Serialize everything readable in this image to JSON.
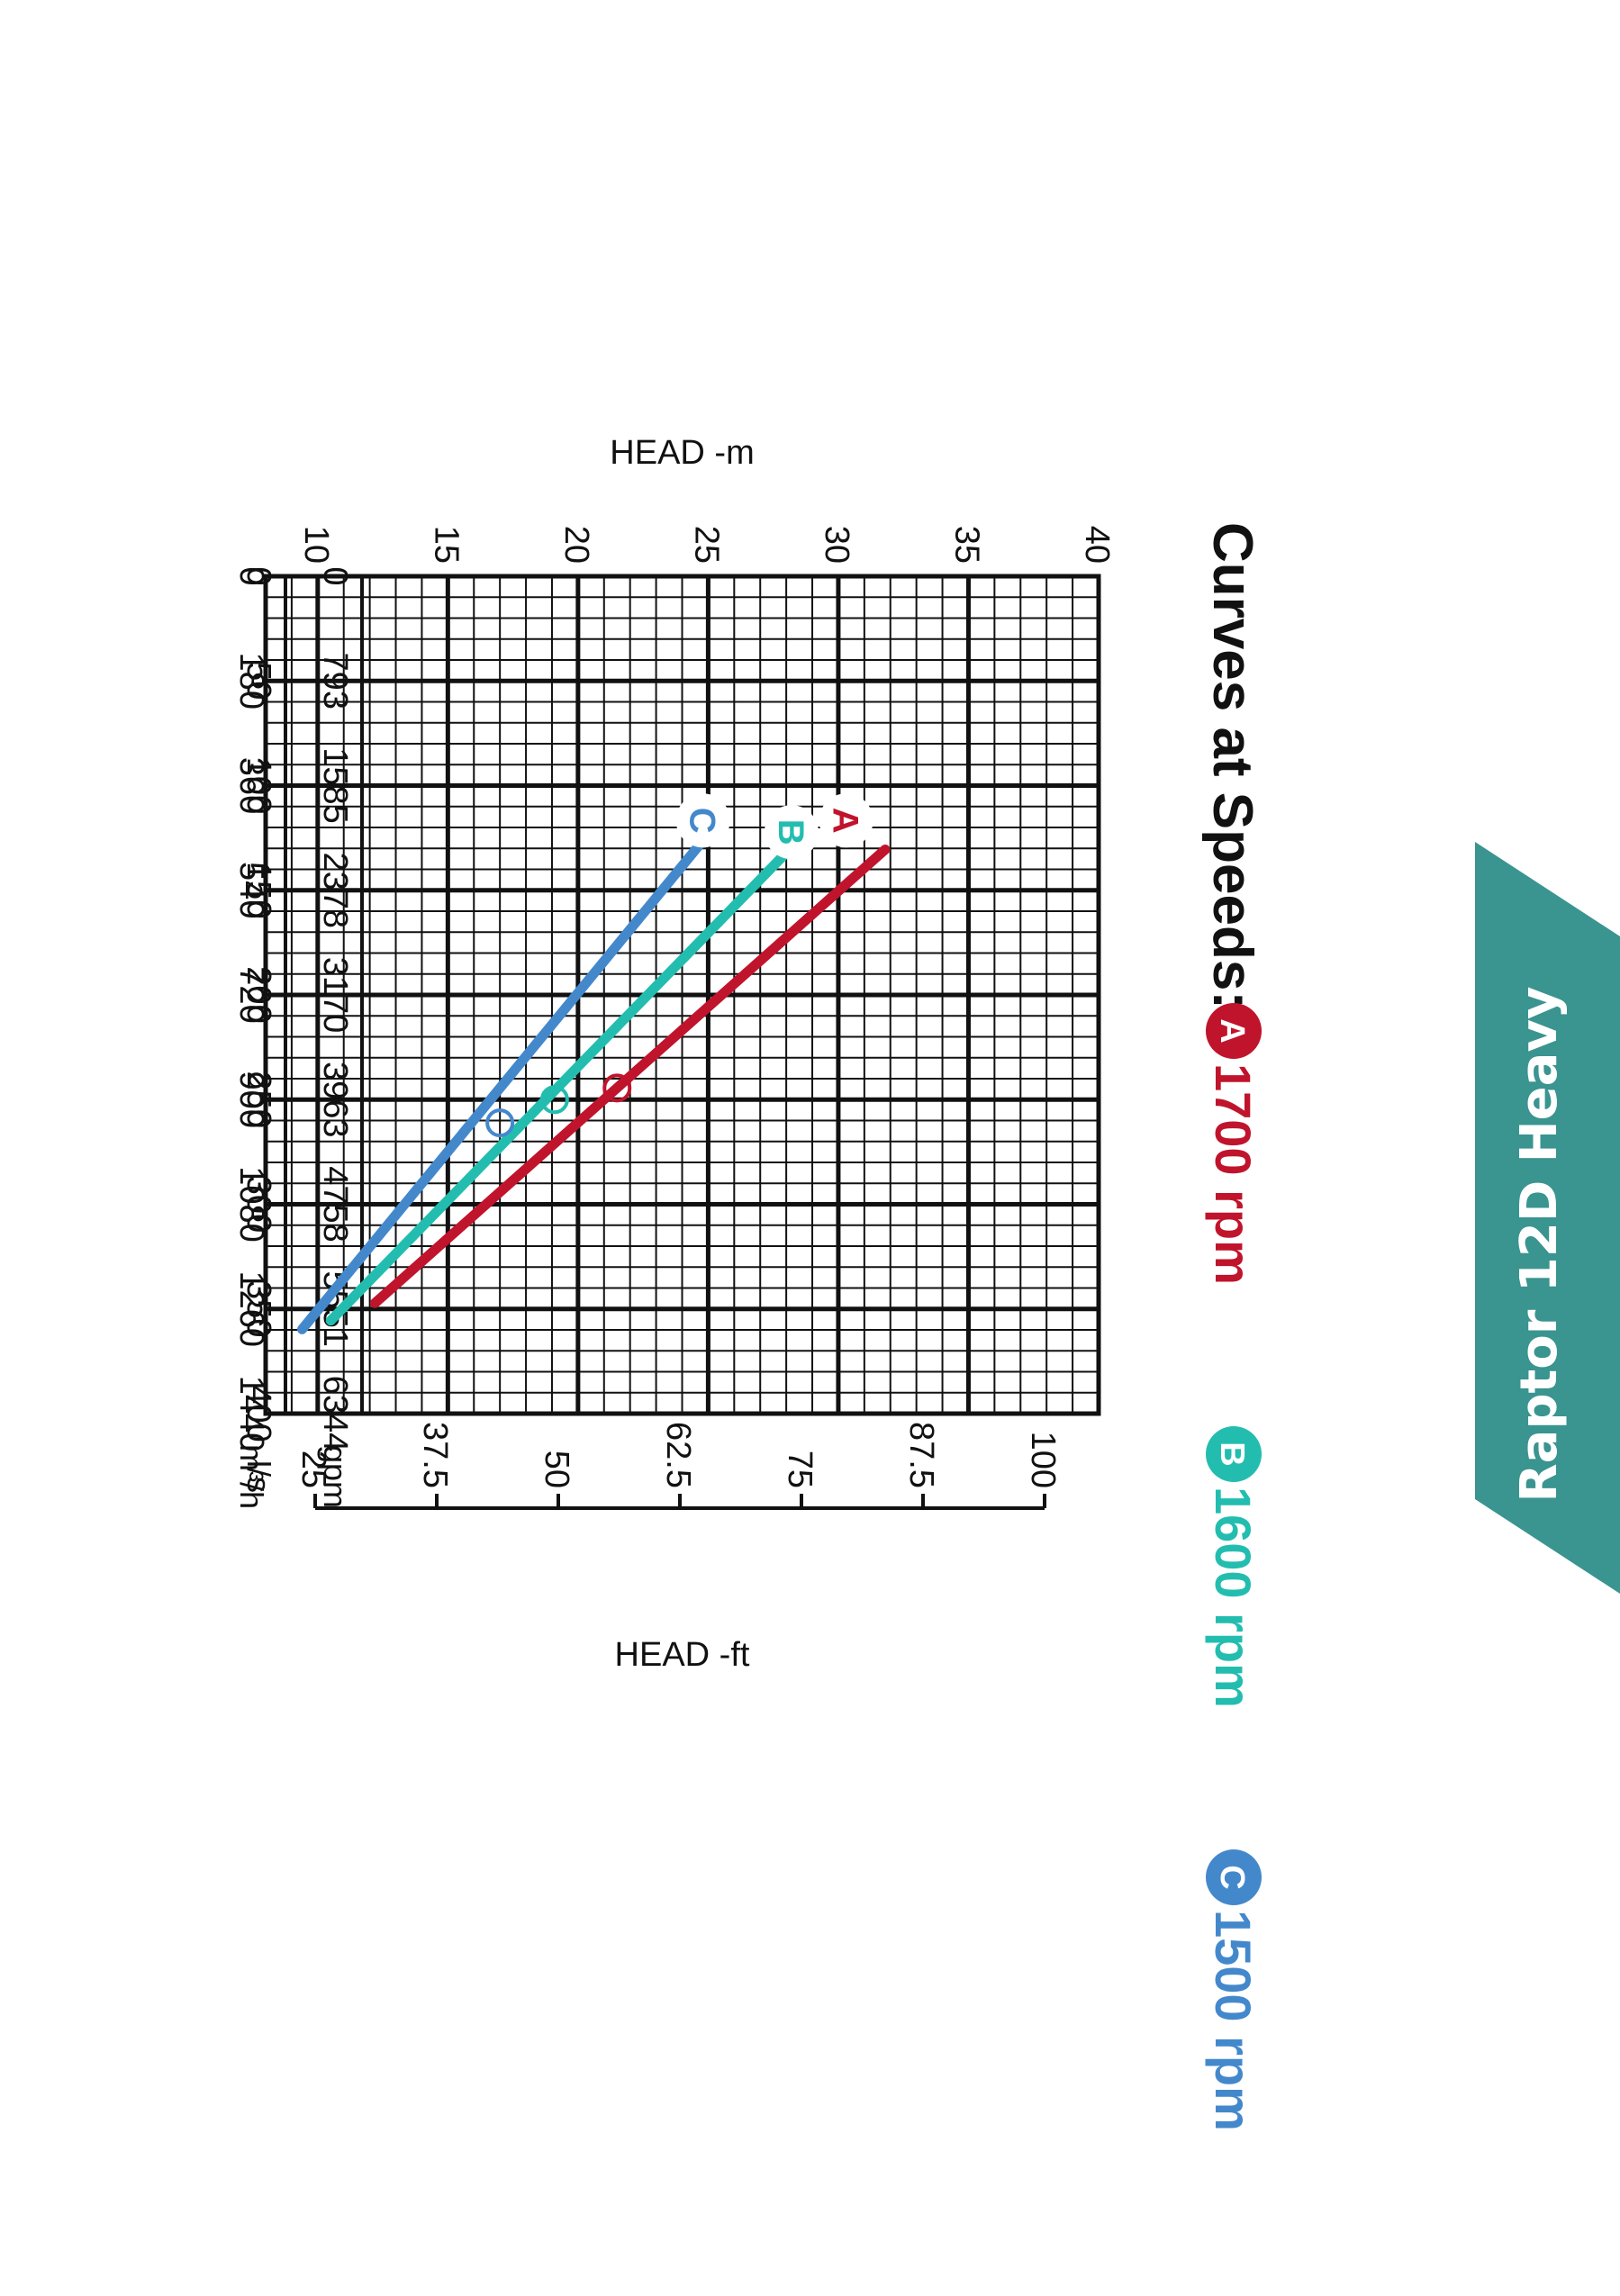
{
  "side_tab": {
    "label": "Raptor 12D Heavy",
    "color": "#3a9490"
  },
  "chart_data": {
    "type": "line",
    "title": "Curves at Speeds:",
    "orientation": "rotated 90 degrees clockwise",
    "x_axes": [
      {
        "unit": "m³/h",
        "range": [
          0,
          1440
        ],
        "ticks": [
          "0",
          "180",
          "360",
          "540",
          "720",
          "900",
          "1080",
          "1260",
          "1440"
        ]
      },
      {
        "unit": "gpm",
        "range": [
          0,
          6344
        ],
        "ticks": [
          "0",
          "793",
          "1585",
          "2378",
          "3170",
          "3963",
          "4758",
          "5551",
          "6344"
        ]
      },
      {
        "unit": "l/s",
        "range": [
          0,
          400
        ],
        "ticks": [
          "0",
          "50",
          "100",
          "150",
          "200",
          "250",
          "300",
          "350",
          "400"
        ]
      }
    ],
    "y_axes": [
      {
        "label": "HEAD -m",
        "range": [
          8,
          40
        ],
        "ticks": [
          "40",
          "35",
          "30",
          "25",
          "20",
          "15",
          "10"
        ]
      },
      {
        "label": "HEAD -ft",
        "range": [
          25,
          100
        ],
        "ticks": [
          "100",
          "87.5",
          "75",
          "62.5",
          "50",
          "37.5",
          "25"
        ]
      }
    ],
    "grid": true,
    "series": [
      {
        "name": "1700 rpm",
        "badge": "A",
        "color": "#c0142c",
        "x": [
          470,
          1250
        ],
        "y": [
          31.8,
          12.2
        ],
        "marker": {
          "x": 880,
          "y": 21.5
        }
      },
      {
        "name": "1600 rpm",
        "badge": "B",
        "color": "#23bdb0",
        "x": [
          480,
          1280
        ],
        "y": [
          27.9,
          10.5
        ],
        "marker": {
          "x": 900,
          "y": 19.1
        }
      },
      {
        "name": "1500 rpm",
        "badge": "C",
        "color": "#4488cc",
        "x": [
          460,
          1295
        ],
        "y": [
          24.7,
          9.4
        ],
        "marker": {
          "x": 940,
          "y": 17.0
        }
      }
    ]
  }
}
